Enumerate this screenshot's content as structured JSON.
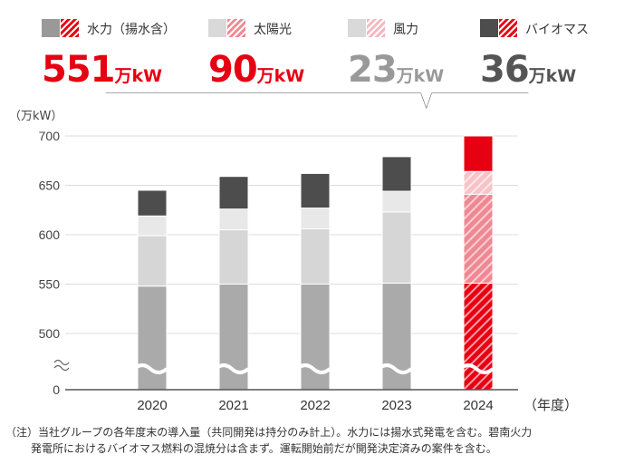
{
  "legend": [
    {
      "label": "水力（揚水含）",
      "value": "551",
      "unit": "万kW",
      "value_color": "#e60012",
      "solid": "#999999",
      "hatch": "#e60012"
    },
    {
      "label": "太陽光",
      "value": "90",
      "unit": "万kW",
      "value_color": "#e60012",
      "solid": "#d9d9d9",
      "hatch": "#ef8a94"
    },
    {
      "label": "風力",
      "value": "23",
      "unit": "万kW",
      "value_color": "#999999",
      "solid": "#d9d9d9",
      "hatch": "#f4b8bf"
    },
    {
      "label": "バイオマス",
      "value": "36",
      "unit": "万kW",
      "value_color": "#555555",
      "solid": "#4d4d4d",
      "hatch": "#e60012"
    }
  ],
  "chart_data": {
    "type": "bar",
    "stacked": true,
    "categories": [
      "2020",
      "2021",
      "2022",
      "2023",
      "2024"
    ],
    "series": [
      {
        "name": "水力（揚水含）",
        "values": [
          548,
          550,
          550,
          551,
          551
        ]
      },
      {
        "name": "太陽光",
        "values": [
          51,
          55,
          56,
          72,
          90
        ]
      },
      {
        "name": "風力",
        "values": [
          20,
          21,
          21,
          21,
          23
        ]
      },
      {
        "name": "バイオマス",
        "values": [
          26,
          33,
          35,
          35,
          36
        ]
      }
    ],
    "highlight_category": "2024",
    "ylabel": "（万kW）",
    "xlabel": "（年度）",
    "ylim": [
      450,
      700
    ],
    "yticks": [
      "0",
      "500",
      "550",
      "600",
      "650",
      "700"
    ],
    "axis_break": true,
    "colors": {
      "hydro": "#aaaaaa",
      "solar": "#d6d6d6",
      "wind": "#e8e8e8",
      "biomass": "#4d4d4d",
      "hl_hydro": "#e60012",
      "hl_solar": "#ef8a94",
      "hl_wind": "#f7c8cd",
      "hl_biomass": "#e60012"
    }
  },
  "note": {
    "line1": "（注）当社グループの各年度末の導入量（共同開発は持分のみ計上）。水力には揚水式発電を含む。碧南火力",
    "line2": "発電所におけるバイオマス燃料の混焼分は含まず。運転開始前だが開発決定済みの案件を含む。"
  }
}
